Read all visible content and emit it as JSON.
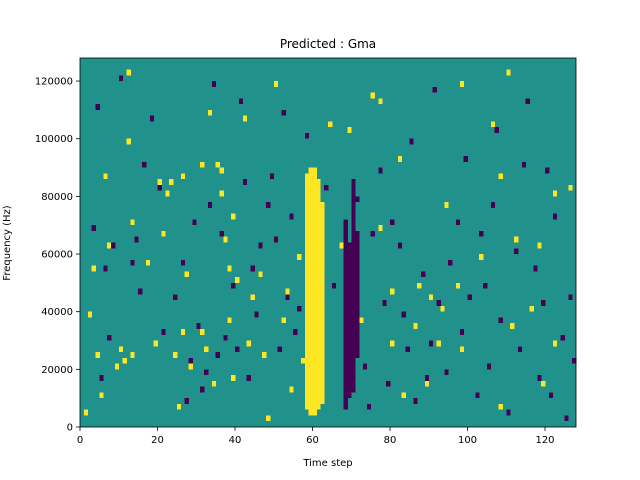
{
  "chart_data": {
    "type": "heatmap",
    "title": "Predicted : Gma",
    "xlabel": "Time step",
    "ylabel": "Frequency (Hz)",
    "xlim": [
      0,
      128
    ],
    "ylim": [
      0,
      128000
    ],
    "xticks": [
      0,
      20,
      40,
      60,
      80,
      100,
      120
    ],
    "yticks": [
      0,
      20000,
      40000,
      60000,
      80000,
      100000,
      120000
    ],
    "grid": false,
    "legend": "none",
    "colors": {
      "background": "#21918c",
      "positive": "#fde725",
      "negative": "#440154"
    },
    "cell_height_hz": 2000,
    "yellow_cells": [
      [
        1,
        4000
      ],
      [
        2,
        38000
      ],
      [
        3,
        54000
      ],
      [
        4,
        24000
      ],
      [
        5,
        10000
      ],
      [
        6,
        86000
      ],
      [
        7,
        62000
      ],
      [
        9,
        20000
      ],
      [
        10,
        26000
      ],
      [
        11,
        22000
      ],
      [
        12,
        122000
      ],
      [
        12,
        98000
      ],
      [
        13,
        70000
      ],
      [
        13,
        24000
      ],
      [
        15,
        46000
      ],
      [
        17,
        56000
      ],
      [
        19,
        28000
      ],
      [
        20,
        84000
      ],
      [
        21,
        66000
      ],
      [
        22,
        80000
      ],
      [
        23,
        84000
      ],
      [
        24,
        24000
      ],
      [
        25,
        6000
      ],
      [
        26,
        32000
      ],
      [
        26,
        86000
      ],
      [
        27,
        52000
      ],
      [
        28,
        20000
      ],
      [
        31,
        32000
      ],
      [
        31,
        90000
      ],
      [
        32,
        26000
      ],
      [
        33,
        108000
      ],
      [
        34,
        14000
      ],
      [
        35,
        90000
      ],
      [
        36,
        80000
      ],
      [
        36,
        88000
      ],
      [
        37,
        64000
      ],
      [
        38,
        54000
      ],
      [
        38,
        36000
      ],
      [
        39,
        72000
      ],
      [
        39,
        16000
      ],
      [
        40,
        50000
      ],
      [
        42,
        106000
      ],
      [
        43,
        28000
      ],
      [
        44,
        44000
      ],
      [
        45,
        38000
      ],
      [
        46,
        52000
      ],
      [
        47,
        24000
      ],
      [
        48,
        2000
      ],
      [
        50,
        118000
      ],
      [
        52,
        36000
      ],
      [
        53,
        46000
      ],
      [
        54,
        12000
      ],
      [
        56,
        58000
      ],
      [
        57,
        22000
      ],
      [
        60,
        36000
      ],
      [
        64,
        104000
      ],
      [
        67,
        62000
      ],
      [
        69,
        102000
      ],
      [
        70,
        36000
      ],
      [
        70,
        70000
      ],
      [
        72,
        36000
      ],
      [
        75,
        114000
      ],
      [
        77,
        68000
      ],
      [
        77,
        112000
      ],
      [
        80,
        28000
      ],
      [
        80,
        46000
      ],
      [
        82,
        92000
      ],
      [
        83,
        10000
      ],
      [
        86,
        34000
      ],
      [
        87,
        48000
      ],
      [
        89,
        14000
      ],
      [
        90,
        44000
      ],
      [
        92,
        28000
      ],
      [
        93,
        40000
      ],
      [
        94,
        76000
      ],
      [
        97,
        48000
      ],
      [
        98,
        118000
      ],
      [
        98,
        26000
      ],
      [
        103,
        58000
      ],
      [
        106,
        104000
      ],
      [
        108,
        6000
      ],
      [
        108,
        86000
      ],
      [
        110,
        122000
      ],
      [
        111,
        34000
      ],
      [
        112,
        64000
      ],
      [
        116,
        40000
      ],
      [
        118,
        62000
      ],
      [
        119,
        14000
      ],
      [
        122,
        28000
      ],
      [
        122,
        80000
      ],
      [
        126,
        82000
      ]
    ],
    "purple_cells": [
      [
        3,
        68000
      ],
      [
        4,
        110000
      ],
      [
        5,
        16000
      ],
      [
        6,
        54000
      ],
      [
        7,
        30000
      ],
      [
        8,
        62000
      ],
      [
        10,
        120000
      ],
      [
        13,
        56000
      ],
      [
        14,
        64000
      ],
      [
        15,
        46000
      ],
      [
        16,
        90000
      ],
      [
        18,
        106000
      ],
      [
        20,
        82000
      ],
      [
        21,
        32000
      ],
      [
        24,
        44000
      ],
      [
        26,
        56000
      ],
      [
        27,
        8000
      ],
      [
        28,
        22000
      ],
      [
        29,
        70000
      ],
      [
        30,
        34000
      ],
      [
        31,
        12000
      ],
      [
        32,
        18000
      ],
      [
        33,
        76000
      ],
      [
        34,
        118000
      ],
      [
        35,
        24000
      ],
      [
        36,
        66000
      ],
      [
        37,
        30000
      ],
      [
        39,
        48000
      ],
      [
        40,
        26000
      ],
      [
        41,
        112000
      ],
      [
        42,
        84000
      ],
      [
        43,
        16000
      ],
      [
        44,
        54000
      ],
      [
        45,
        38000
      ],
      [
        46,
        62000
      ],
      [
        48,
        76000
      ],
      [
        49,
        86000
      ],
      [
        50,
        64000
      ],
      [
        51,
        26000
      ],
      [
        52,
        108000
      ],
      [
        53,
        44000
      ],
      [
        54,
        72000
      ],
      [
        55,
        32000
      ],
      [
        56,
        40000
      ],
      [
        58,
        100000
      ],
      [
        60,
        12000
      ],
      [
        63,
        82000
      ],
      [
        65,
        48000
      ],
      [
        70,
        40000
      ],
      [
        71,
        78000
      ],
      [
        73,
        20000
      ],
      [
        74,
        6000
      ],
      [
        75,
        66000
      ],
      [
        77,
        88000
      ],
      [
        78,
        42000
      ],
      [
        79,
        14000
      ],
      [
        80,
        70000
      ],
      [
        82,
        62000
      ],
      [
        83,
        38000
      ],
      [
        84,
        26000
      ],
      [
        85,
        98000
      ],
      [
        86,
        8000
      ],
      [
        88,
        52000
      ],
      [
        89,
        16000
      ],
      [
        90,
        28000
      ],
      [
        91,
        116000
      ],
      [
        92,
        42000
      ],
      [
        94,
        18000
      ],
      [
        95,
        56000
      ],
      [
        97,
        70000
      ],
      [
        98,
        32000
      ],
      [
        99,
        92000
      ],
      [
        100,
        44000
      ],
      [
        102,
        10000
      ],
      [
        103,
        66000
      ],
      [
        104,
        48000
      ],
      [
        105,
        20000
      ],
      [
        106,
        76000
      ],
      [
        107,
        102000
      ],
      [
        108,
        36000
      ],
      [
        110,
        4000
      ],
      [
        112,
        60000
      ],
      [
        113,
        26000
      ],
      [
        114,
        90000
      ],
      [
        115,
        112000
      ],
      [
        117,
        54000
      ],
      [
        118,
        16000
      ],
      [
        119,
        42000
      ],
      [
        120,
        88000
      ],
      [
        121,
        10000
      ],
      [
        122,
        72000
      ],
      [
        124,
        30000
      ],
      [
        125,
        2000
      ],
      [
        126,
        44000
      ],
      [
        127,
        22000
      ]
    ],
    "yellow_columns": [
      {
        "x": 58,
        "y0": 6000,
        "y1": 88000
      },
      {
        "x": 59,
        "y0": 4000,
        "y1": 90000
      },
      {
        "x": 60,
        "y0": 4000,
        "y1": 90000
      },
      {
        "x": 61,
        "y0": 6000,
        "y1": 86000
      },
      {
        "x": 62,
        "y0": 8000,
        "y1": 78000
      }
    ],
    "purple_columns": [
      {
        "x": 68,
        "y0": 6000,
        "y1": 72000
      },
      {
        "x": 69,
        "y0": 10000,
        "y1": 64000
      },
      {
        "x": 70,
        "y0": 12000,
        "y1": 86000
      },
      {
        "x": 71,
        "y0": 24000,
        "y1": 68000
      }
    ]
  }
}
